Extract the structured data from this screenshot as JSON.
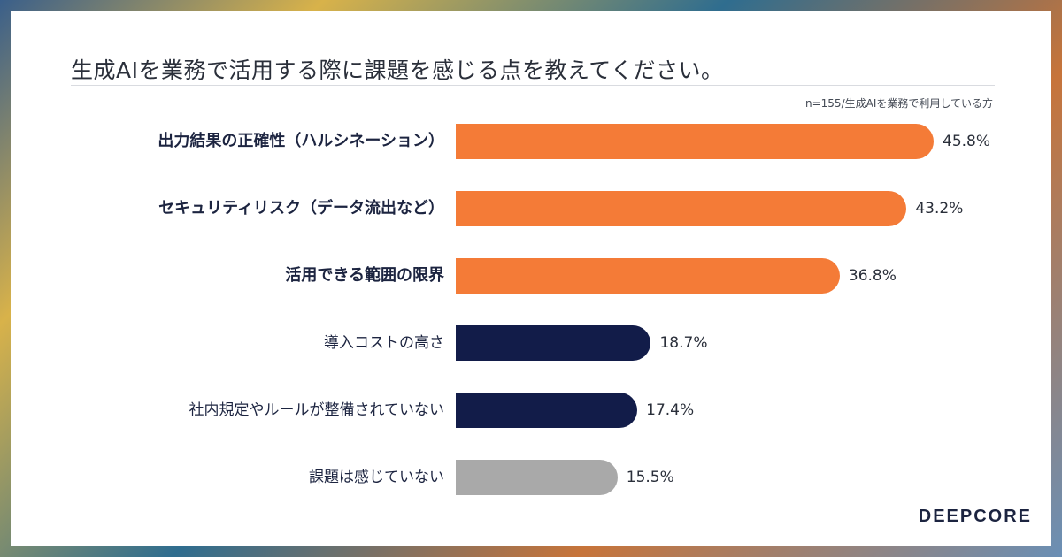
{
  "title": "生成AIを業務で活用する際に課題を感じる点を教えてください。",
  "note": "n=155/生成AIを業務で利用している方",
  "brand": "DEEPCORE",
  "colors": {
    "orange": "#F47B37",
    "navy": "#121C49",
    "gray": "#A9A9A9"
  },
  "chart_data": {
    "type": "bar",
    "orientation": "horizontal",
    "categories": [
      "出力結果の正確性（ハルシネーション）",
      "セキュリティリスク（データ流出など）",
      "活用できる範囲の限界",
      "導入コストの高さ",
      "社内規定やルールが整備されていない",
      "課題は感じていない"
    ],
    "values": [
      45.8,
      43.2,
      36.8,
      18.7,
      17.4,
      15.5
    ],
    "value_labels": [
      "45.8%",
      "43.2%",
      "36.8%",
      "18.7%",
      "17.4%",
      "15.5%"
    ],
    "bar_colors": [
      "orange",
      "orange",
      "orange",
      "navy",
      "navy",
      "gray"
    ],
    "bold_categories": [
      true,
      true,
      true,
      false,
      false,
      false
    ],
    "xlim": [
      0,
      50
    ],
    "grid": false,
    "legend": "none"
  }
}
